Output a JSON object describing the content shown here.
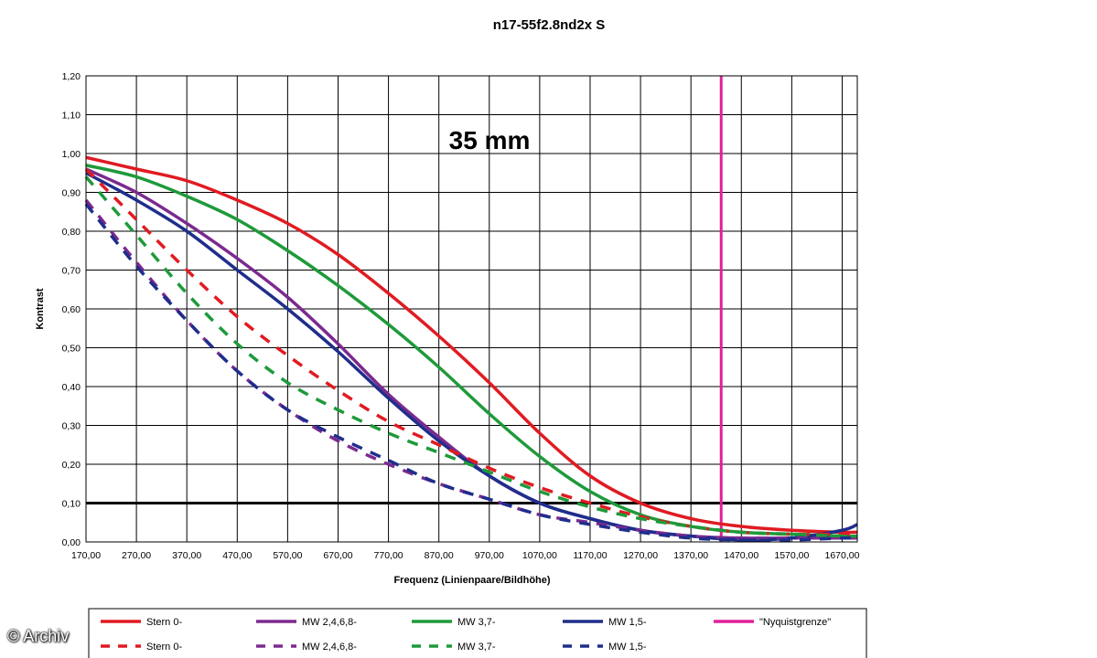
{
  "chart_data": {
    "type": "line",
    "title": "n17-55f2.8nd2x S",
    "annotation": "35 mm",
    "xlabel": "Frequenz (Linienpaare/Bildhöhe)",
    "ylabel": "Kontrast",
    "xlim": [
      170,
      1700
    ],
    "ylim": [
      0,
      1.2
    ],
    "x_ticks": [
      "170,00",
      "270,00",
      "370,00",
      "470,00",
      "570,00",
      "670,00",
      "770,00",
      "870,00",
      "970,00",
      "1070,00",
      "1170,00",
      "1270,00",
      "1370,00",
      "1470,00",
      "1570,00",
      "1670,00"
    ],
    "y_ticks": [
      "0,00",
      "0,10",
      "0,20",
      "0,30",
      "0,40",
      "0,50",
      "0,60",
      "0,70",
      "0,80",
      "0,90",
      "1,00",
      "1,10",
      "1,20"
    ],
    "reference_line": {
      "y": 0.1,
      "color": "#000000"
    },
    "nyquist": {
      "x": 1430,
      "label": "\"Nyquistgrenze\"",
      "color": "#e0209a"
    },
    "series": [
      {
        "name": "Stern 0-",
        "style": "solid",
        "color": "#e01b22",
        "x": [
          170,
          270,
          370,
          470,
          570,
          670,
          770,
          870,
          970,
          1070,
          1170,
          1270,
          1370,
          1470,
          1570,
          1670,
          1700
        ],
        "y": [
          0.99,
          0.96,
          0.93,
          0.88,
          0.82,
          0.74,
          0.64,
          0.53,
          0.41,
          0.28,
          0.17,
          0.1,
          0.06,
          0.04,
          0.03,
          0.025,
          0.025
        ]
      },
      {
        "name": "MW 2,4,6,8-",
        "style": "solid",
        "color": "#7b2a8f",
        "x": [
          170,
          270,
          370,
          470,
          570,
          670,
          770,
          870,
          970,
          1070,
          1170,
          1270,
          1370,
          1470,
          1570,
          1670,
          1700
        ],
        "y": [
          0.96,
          0.9,
          0.82,
          0.73,
          0.63,
          0.51,
          0.38,
          0.27,
          0.17,
          0.1,
          0.06,
          0.03,
          0.015,
          0.01,
          0.01,
          0.01,
          0.01
        ]
      },
      {
        "name": "MW 3,7-",
        "style": "solid",
        "color": "#1e9a3a",
        "x": [
          170,
          270,
          370,
          470,
          570,
          670,
          770,
          870,
          970,
          1070,
          1170,
          1270,
          1370,
          1470,
          1570,
          1670,
          1700
        ],
        "y": [
          0.97,
          0.94,
          0.89,
          0.83,
          0.75,
          0.66,
          0.56,
          0.45,
          0.33,
          0.22,
          0.13,
          0.07,
          0.04,
          0.025,
          0.02,
          0.015,
          0.015
        ]
      },
      {
        "name": "MW 1,5-",
        "style": "solid",
        "color": "#1f2e8c",
        "x": [
          170,
          270,
          370,
          470,
          570,
          670,
          770,
          870,
          970,
          1070,
          1170,
          1270,
          1370,
          1470,
          1570,
          1670,
          1700
        ],
        "y": [
          0.95,
          0.88,
          0.8,
          0.7,
          0.6,
          0.49,
          0.37,
          0.26,
          0.17,
          0.1,
          0.06,
          0.03,
          0.015,
          0.005,
          0.01,
          0.03,
          0.045
        ]
      },
      {
        "name": "Stern 0-",
        "style": "dashed",
        "color": "#e01b22",
        "x": [
          170,
          270,
          370,
          470,
          570,
          670,
          770,
          870,
          970,
          1070,
          1170,
          1270,
          1370,
          1470,
          1570,
          1670,
          1700
        ],
        "y": [
          0.96,
          0.83,
          0.7,
          0.58,
          0.48,
          0.39,
          0.31,
          0.25,
          0.19,
          0.14,
          0.1,
          0.065,
          0.04,
          0.025,
          0.02,
          0.02,
          0.02
        ]
      },
      {
        "name": "MW 2,4,6,8-",
        "style": "dashed",
        "color": "#7b2a8f",
        "x": [
          170,
          270,
          370,
          470,
          570,
          670,
          770,
          870,
          970,
          1070,
          1170,
          1270,
          1370,
          1470,
          1570,
          1670,
          1700
        ],
        "y": [
          0.88,
          0.72,
          0.57,
          0.44,
          0.34,
          0.26,
          0.2,
          0.15,
          0.11,
          0.07,
          0.05,
          0.03,
          0.015,
          0.01,
          0.01,
          0.01,
          0.01
        ]
      },
      {
        "name": "MW 3,7-",
        "style": "dashed",
        "color": "#1e9a3a",
        "x": [
          170,
          270,
          370,
          470,
          570,
          670,
          770,
          870,
          970,
          1070,
          1170,
          1270,
          1370,
          1470,
          1570,
          1670,
          1700
        ],
        "y": [
          0.94,
          0.79,
          0.64,
          0.51,
          0.41,
          0.34,
          0.28,
          0.23,
          0.18,
          0.13,
          0.09,
          0.06,
          0.04,
          0.025,
          0.02,
          0.015,
          0.015
        ]
      },
      {
        "name": "MW 1,5-",
        "style": "dashed",
        "color": "#1f2e8c",
        "x": [
          170,
          270,
          370,
          470,
          570,
          670,
          770,
          870,
          970,
          1070,
          1170,
          1270,
          1370,
          1470,
          1570,
          1670,
          1700
        ],
        "y": [
          0.87,
          0.71,
          0.57,
          0.44,
          0.34,
          0.27,
          0.21,
          0.15,
          0.11,
          0.07,
          0.045,
          0.025,
          0.01,
          0.005,
          0.005,
          0.01,
          0.01
        ]
      }
    ]
  },
  "watermark": "© Archiv"
}
